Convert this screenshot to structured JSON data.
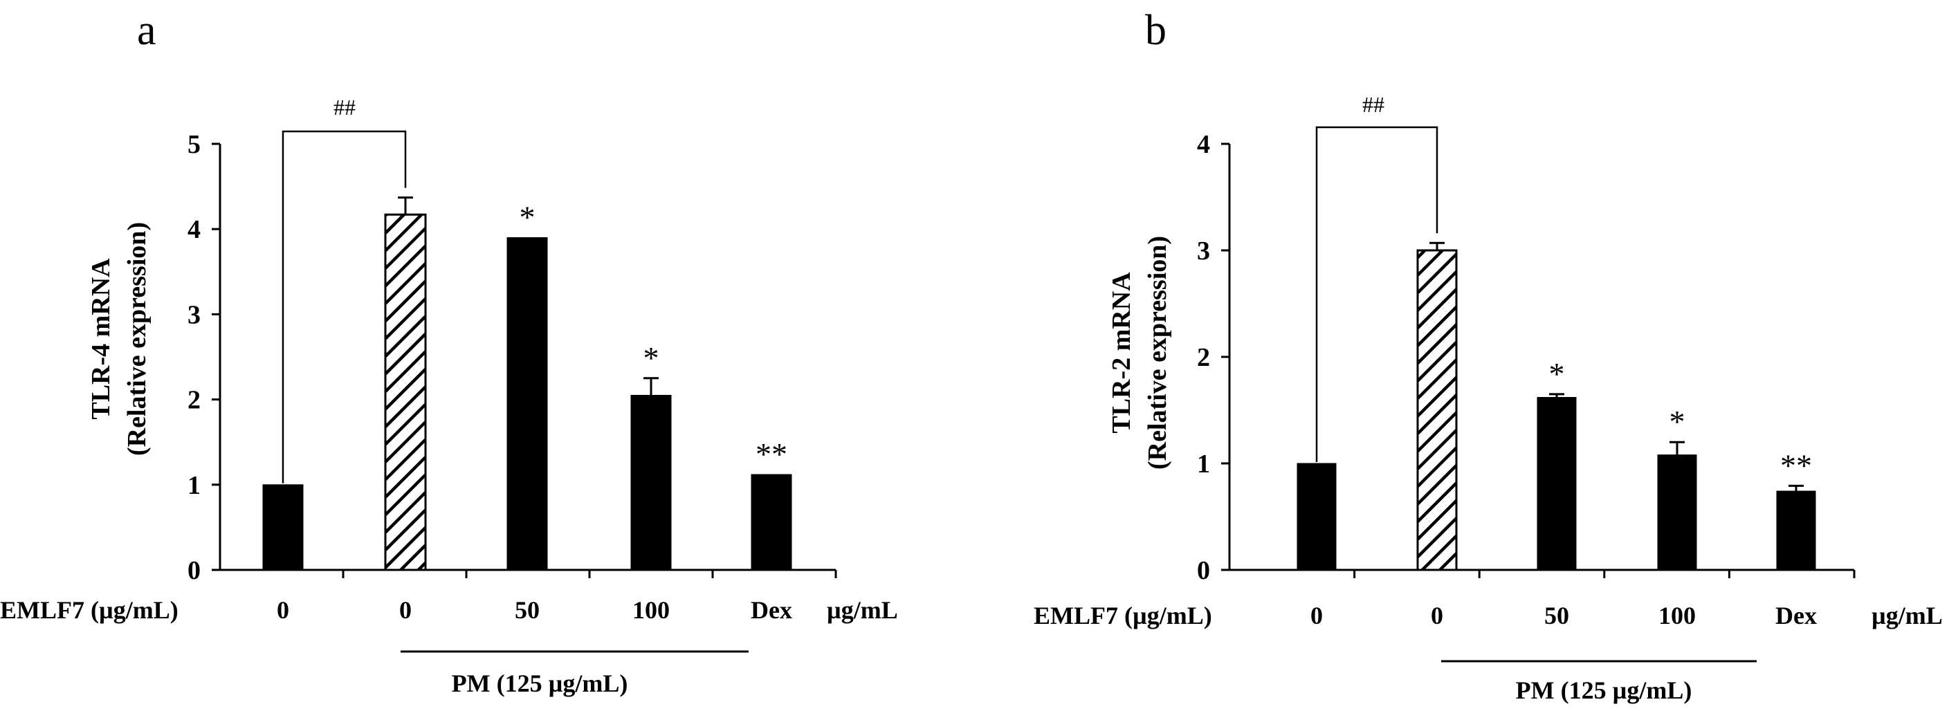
{
  "chart_data": [
    {
      "type": "bar",
      "panel": "a",
      "ylabel_line1": "TLR-4 mRNA",
      "ylabel_line2": "(Relative expression)",
      "ylim": [
        0,
        5
      ],
      "yticks": [
        "0",
        "1",
        "2",
        "3",
        "4",
        "5"
      ],
      "row_label": "EMLF7 (µg/mL)",
      "unit_label": "µg/mL",
      "group_label": "PM (125 µg/mL)",
      "bracket_label": "##",
      "categories": [
        "0",
        "0",
        "50",
        "100",
        "Dex"
      ],
      "values": [
        1.0,
        4.17,
        3.9,
        2.05,
        1.12
      ],
      "errors": [
        0.0,
        0.2,
        0.0,
        0.2,
        0.0
      ],
      "patterns": [
        "solid",
        "hatched",
        "solid",
        "solid",
        "solid"
      ],
      "significance": [
        "",
        "",
        "*",
        "*",
        "**"
      ]
    },
    {
      "type": "bar",
      "panel": "b",
      "ylabel_line1": "TLR-2 mRNA",
      "ylabel_line2": "(Relative expression)",
      "ylim": [
        0,
        4
      ],
      "yticks": [
        "0",
        "1",
        "2",
        "3",
        "4"
      ],
      "row_label": "EMLF7 (µg/mL)",
      "unit_label": "µg/mL",
      "group_label": "PM (125 µg/mL)",
      "bracket_label": "##",
      "categories": [
        "0",
        "0",
        "50",
        "100",
        "Dex"
      ],
      "values": [
        1.0,
        3.0,
        1.62,
        1.08,
        0.74
      ],
      "errors": [
        0.0,
        0.07,
        0.03,
        0.12,
        0.05
      ],
      "patterns": [
        "solid",
        "hatched",
        "solid",
        "solid",
        "solid"
      ],
      "significance": [
        "",
        "",
        "*",
        "*",
        "**"
      ]
    }
  ]
}
